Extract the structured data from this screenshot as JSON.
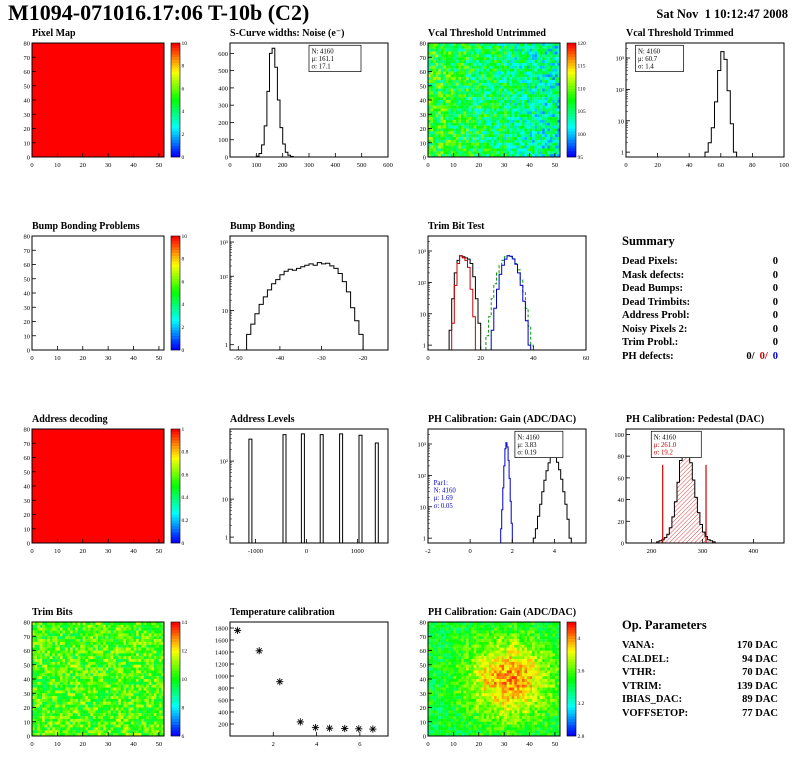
{
  "header": {
    "title": "M1094-071016.17:06 T-10b (C2)",
    "timestamp": "Sat Nov  1 10:12:47 2008"
  },
  "colors": {
    "red": "#cc0000",
    "blue": "#0000cc",
    "green": "#009900",
    "map_red": "#ff0000"
  },
  "summary": {
    "title": "Summary",
    "rows": [
      {
        "label": "Dead Pixels:",
        "value": "0"
      },
      {
        "label": "Mask defects:",
        "value": "0"
      },
      {
        "label": "Dead Bumps:",
        "value": "0"
      },
      {
        "label": "Dead Trimbits:",
        "value": "0"
      },
      {
        "label": "Address Probl:",
        "value": "0"
      },
      {
        "label": "Noisy Pixels 2:",
        "value": "0"
      },
      {
        "label": "Trim Probl.:",
        "value": "0"
      }
    ],
    "ph_defects": {
      "label": "PH defects:",
      "v1": "0/",
      "v2": "0/",
      "v3": "0"
    }
  },
  "op_parameters": {
    "title": "Op. Parameters",
    "rows": [
      {
        "label": "VANA:",
        "value": "170 DAC"
      },
      {
        "label": "CALDEL:",
        "value": "94 DAC"
      },
      {
        "label": "VTHR:",
        "value": "70 DAC"
      },
      {
        "label": "VTRIM:",
        "value": "139 DAC"
      },
      {
        "label": "IBIAS_DAC:",
        "value": "89 DAC"
      },
      {
        "label": "VOFFSETOP:",
        "value": "77 DAC"
      }
    ]
  },
  "chart_data": [
    {
      "type": "heatmap",
      "title": "Pixel Map",
      "xlim": [
        0,
        52
      ],
      "ylim": [
        0,
        80
      ],
      "xticks": [
        0,
        10,
        20,
        30,
        40,
        50
      ],
      "yticks": [
        0,
        10,
        20,
        30,
        40,
        50,
        60,
        70,
        80
      ],
      "fill": "uniform",
      "z_value": 1,
      "z_range": [
        0,
        10
      ],
      "z_ticks": [
        0,
        2,
        4,
        6,
        8,
        10
      ]
    },
    {
      "type": "hist",
      "title": "S-Curve widths: Noise (e⁻)",
      "xlim": [
        0,
        600
      ],
      "ylim": [
        0,
        660
      ],
      "xticks": [
        0,
        100,
        200,
        300,
        400,
        500,
        600
      ],
      "yticks": [
        0,
        100,
        200,
        300,
        400,
        500,
        600
      ],
      "series": [
        {
          "color": "#000000",
          "x0": 100,
          "dx": 10,
          "counts": [
            5,
            20,
            70,
            180,
            380,
            600,
            630,
            520,
            330,
            170,
            75,
            28,
            10,
            3
          ]
        }
      ],
      "stats": [
        {
          "x": 0.5,
          "y": 0.02,
          "border": true,
          "w": 52,
          "lines": [
            [
              "N: 4160",
              "#000000"
            ],
            [
              "μ: 161.1",
              "#000000"
            ],
            [
              "σ: 17.1",
              "#000000"
            ]
          ]
        }
      ]
    },
    {
      "type": "heatmap",
      "title": "Vcal Threshold Untrimmed",
      "xlim": [
        0,
        52
      ],
      "ylim": [
        0,
        80
      ],
      "xticks": [
        0,
        10,
        20,
        30,
        40,
        50
      ],
      "yticks": [
        0,
        10,
        20,
        30,
        40,
        50,
        60,
        70,
        80
      ],
      "fill": "noise",
      "base": 0.52,
      "xslope": -0.22,
      "amp": 0.38,
      "z_range": [
        95,
        120
      ],
      "z_ticks": [
        95,
        100,
        105,
        110,
        115,
        120
      ]
    },
    {
      "type": "hist",
      "title": "Vcal Threshold Trimmed",
      "ylog": true,
      "xlim": [
        0,
        100
      ],
      "ylim": [
        0.7,
        3000
      ],
      "xticks": [
        0,
        20,
        40,
        60,
        80,
        100
      ],
      "series": [
        {
          "color": "#000000",
          "x0": 50,
          "dx": 2,
          "counts": [
            1,
            2,
            6,
            40,
            400,
            1600,
            900,
            90,
            8,
            1
          ]
        }
      ],
      "stats": [
        {
          "x": 0.06,
          "y": 0.02,
          "border": true,
          "w": 48,
          "lines": [
            [
              "N: 4160",
              "#000000"
            ],
            [
              "μ: 60.7",
              "#000000"
            ],
            [
              "σ: 1.4",
              "#000000"
            ]
          ]
        }
      ]
    },
    {
      "type": "heatmap",
      "title": "Bump Bonding Problems",
      "xlim": [
        0,
        52
      ],
      "ylim": [
        0,
        80
      ],
      "xticks": [
        0,
        10,
        20,
        30,
        40,
        50
      ],
      "yticks": [
        0,
        10,
        20,
        30,
        40,
        50,
        60,
        70,
        80
      ],
      "fill": "empty",
      "z_range": [
        0,
        10
      ],
      "z_ticks": [
        0,
        2,
        4,
        6,
        8,
        10
      ]
    },
    {
      "type": "hist",
      "title": "Bump Bonding",
      "ylog": true,
      "xlim": [
        -52,
        -14
      ],
      "ylim": [
        0.7,
        1500
      ],
      "xticks": [
        -50,
        -40,
        -30,
        -20
      ],
      "series": [
        {
          "color": "#000000",
          "x0": -48,
          "dx": 1,
          "counts": [
            2,
            4,
            8,
            15,
            25,
            40,
            60,
            80,
            110,
            140,
            160,
            150,
            170,
            190,
            210,
            230,
            210,
            250,
            230,
            240,
            200,
            170,
            120,
            70,
            35,
            12,
            5,
            2
          ]
        }
      ]
    },
    {
      "type": "hist",
      "title": "Trim Bit Test",
      "ylog": true,
      "xlim": [
        0,
        60
      ],
      "ylim": [
        0.7,
        3000
      ],
      "xticks": [
        0,
        20,
        40,
        60
      ],
      "series": [
        {
          "color": "#000000",
          "x0": 8,
          "dx": 1,
          "counts": [
            3,
            30,
            200,
            500,
            700,
            650,
            600,
            550,
            400,
            150,
            30,
            5
          ]
        },
        {
          "color": "#cc0000",
          "x0": 9,
          "dx": 1,
          "counts": [
            5,
            80,
            400,
            700,
            600,
            500,
            300,
            60,
            8
          ]
        },
        {
          "color": "#009900",
          "dash": true,
          "x0": 22,
          "dx": 1,
          "counts": [
            2,
            8,
            30,
            90,
            200,
            350,
            500,
            650,
            700,
            650,
            550,
            400,
            250,
            120,
            50,
            15,
            4,
            1
          ]
        },
        {
          "color": "#0000cc",
          "x0": 24,
          "dx": 1,
          "counts": [
            3,
            15,
            60,
            180,
            350,
            550,
            700,
            680,
            560,
            380,
            200,
            80,
            25,
            6,
            1
          ]
        }
      ]
    },
    {
      "type": "heatmap",
      "title": "Address decoding",
      "xlim": [
        0,
        52
      ],
      "ylim": [
        0,
        80
      ],
      "xticks": [
        0,
        10,
        20,
        30,
        40,
        50
      ],
      "yticks": [
        0,
        10,
        20,
        30,
        40,
        50,
        60,
        70,
        80
      ],
      "fill": "uniform",
      "z_value": 1,
      "z_range": [
        0,
        1
      ],
      "z_ticks": [
        0,
        0.2,
        0.4,
        0.6,
        0.8,
        1
      ]
    },
    {
      "type": "spikes",
      "title": "Address Levels",
      "ylog": true,
      "xlim": [
        -1500,
        1600
      ],
      "ylim": [
        0.7,
        700
      ],
      "xticks": [
        -1000,
        0,
        1000
      ],
      "spikes": [
        [
          -1100,
          380
        ],
        [
          -430,
          500
        ],
        [
          -70,
          520
        ],
        [
          300,
          500
        ],
        [
          680,
          520
        ],
        [
          1060,
          480
        ],
        [
          1380,
          300
        ]
      ]
    },
    {
      "type": "hist",
      "title": "PH Calibration: Gain (ADC/DAC)",
      "ylog": true,
      "xlim": [
        -2,
        5.5
      ],
      "ylim": [
        0.7,
        3000
      ],
      "xticks": [
        -2,
        0,
        2,
        4
      ],
      "series": [
        {
          "color": "#000000",
          "x0": 3.0,
          "dx": 0.1,
          "counts": [
            1,
            2,
            5,
            12,
            30,
            70,
            140,
            250,
            380,
            420,
            380,
            260,
            150,
            75,
            30,
            12,
            4,
            1
          ]
        },
        {
          "color": "#0000cc",
          "x0": 1.45,
          "dx": 0.05,
          "counts": [
            2,
            8,
            40,
            200,
            700,
            1100,
            800,
            300,
            80,
            15,
            3
          ]
        }
      ],
      "stats": [
        {
          "x": 0.55,
          "y": 0.02,
          "border": true,
          "w": 48,
          "lines": [
            [
              "N: 4160",
              "#000000"
            ],
            [
              "μ: 3.83",
              "#000000"
            ],
            [
              "σ: 0.19",
              "#000000"
            ]
          ]
        },
        {
          "x": 0.02,
          "y": 0.42,
          "border": false,
          "lines": [
            [
              "Par1:",
              "#0000cc"
            ],
            [
              "N: 4160",
              "#0000cc"
            ],
            [
              "μ: 1.69",
              "#0000cc"
            ],
            [
              "σ: 0.05",
              "#0000cc"
            ]
          ]
        }
      ]
    },
    {
      "type": "hist",
      "title": "PH Calibration: Pedestal (DAC)",
      "xlim": [
        150,
        460
      ],
      "ylim": [
        0,
        105
      ],
      "xticks": [
        200,
        300,
        400
      ],
      "yticks": [
        0,
        20,
        40,
        60,
        80,
        100
      ],
      "series": [
        {
          "color": "#000000",
          "fill": "hatch",
          "x0": 210,
          "dx": 5,
          "counts": [
            1,
            2,
            3,
            5,
            8,
            14,
            24,
            38,
            56,
            76,
            92,
            96,
            88,
            74,
            58,
            42,
            28,
            17,
            10,
            6,
            3,
            2,
            1
          ]
        }
      ],
      "vlines": [
        {
          "x": 222,
          "y": 72,
          "color": "#cc0000"
        },
        {
          "x": 307,
          "y": 72,
          "color": "#cc0000"
        }
      ],
      "stats": [
        {
          "x": 0.16,
          "y": 0.02,
          "border": true,
          "w": 50,
          "lines": [
            [
              "N: 4160",
              "#000000"
            ],
            [
              "μ: 261.0",
              "#cc0000"
            ],
            [
              "σ: 19.2",
              "#cc0000"
            ]
          ]
        }
      ]
    },
    {
      "type": "heatmap",
      "title": "Trim Bits",
      "xlim": [
        0,
        52
      ],
      "ylim": [
        0,
        80
      ],
      "xticks": [
        0,
        10,
        20,
        30,
        40,
        50
      ],
      "yticks": [
        0,
        10,
        20,
        30,
        40,
        50,
        60,
        70,
        80
      ],
      "fill": "noise",
      "base": 0.56,
      "xslope": 0,
      "amp": 0.32,
      "z_range": [
        6,
        14
      ],
      "z_ticks": [
        6,
        8,
        10,
        12,
        14
      ]
    },
    {
      "type": "scatter",
      "title": "Temperature calibration",
      "xlim": [
        0,
        7.3
      ],
      "ylim": [
        0,
        1900
      ],
      "xticks": [
        2,
        4,
        6
      ],
      "yticks": [
        200,
        400,
        600,
        800,
        1000,
        1200,
        1400,
        1600,
        1800
      ],
      "points": [
        [
          0.35,
          1760
        ],
        [
          1.35,
          1420
        ],
        [
          2.3,
          905
        ],
        [
          3.25,
          235
        ],
        [
          3.95,
          140
        ],
        [
          4.6,
          130
        ],
        [
          5.3,
          125
        ],
        [
          5.95,
          120
        ],
        [
          6.6,
          115
        ]
      ]
    },
    {
      "type": "heatmap",
      "title": "PH Calibration: Gain (ADC/DAC)",
      "xlim": [
        0,
        52
      ],
      "ylim": [
        0,
        80
      ],
      "xticks": [
        0,
        10,
        20,
        30,
        40,
        50
      ],
      "yticks": [
        0,
        10,
        20,
        30,
        40,
        50,
        60,
        70,
        80
      ],
      "fill": "noise",
      "base": 0.45,
      "xslope": 0,
      "amp": 0.24,
      "blob": {
        "cx": 32,
        "cy": 40,
        "sx": 12,
        "sy": 20,
        "s": 0.4
      },
      "z_range": [
        2.8,
        4.2
      ],
      "z_ticks": [
        2.8,
        3.2,
        3.6,
        4.0
      ]
    }
  ]
}
